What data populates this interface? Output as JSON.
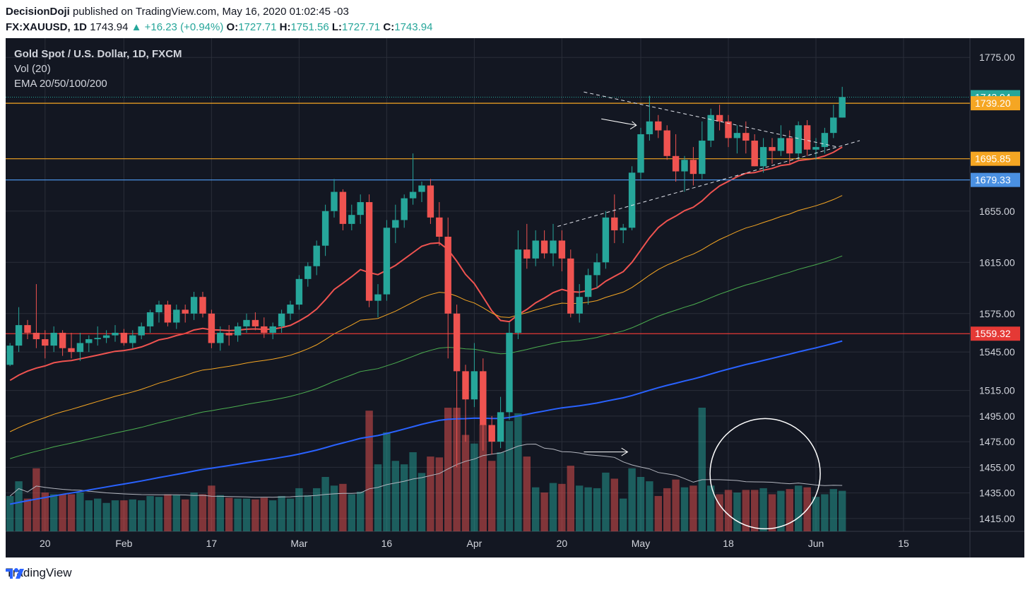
{
  "header": {
    "publisher": "DecisionDoji",
    "published_text": "published on TradingView.com, May 16, 2020 01:02:45 -03",
    "symbol": "FX:XAUUSD, 1D",
    "last": "1743.94",
    "change": "▲ +16.23 (+0.94%)",
    "o_label": "O:",
    "o_value": "1727.71",
    "h_label": "H:",
    "h_value": "1751.56",
    "l_label": "L:",
    "l_value": "1727.71",
    "c_label": "C:",
    "c_value": "1743.94"
  },
  "legend": {
    "title": "Gold Spot / U.S. Dollar, 1D, FXCM",
    "vol": "Vol (20)",
    "ema": "EMA 20/50/100/200"
  },
  "footer": {
    "brand": "TradingView"
  },
  "colors": {
    "background": "#131722",
    "grid": "#2a2e39",
    "up": "#26a69a",
    "down": "#ef5350",
    "ema20": "#ef5350",
    "ema50": "#f5a623",
    "ema100": "#4caf50",
    "ema200": "#2962ff",
    "axis_text": "#d1d4dc"
  },
  "chart_data": {
    "type": "candlestick",
    "title": "Gold Spot / U.S. Dollar, 1D, FXCM",
    "ylim": [
      1405,
      1790
    ],
    "y_ticks": [
      1415,
      1435,
      1455,
      1475,
      1495,
      1515,
      1545,
      1575,
      1615,
      1655,
      1775
    ],
    "x_tick_labels": [
      {
        "label": "20",
        "day": 4
      },
      {
        "label": "Feb",
        "day": 13
      },
      {
        "label": "17",
        "day": 23
      },
      {
        "label": "Mar",
        "day": 33
      },
      {
        "label": "16",
        "day": 43
      },
      {
        "label": "Apr",
        "day": 53
      },
      {
        "label": "20",
        "day": 63
      },
      {
        "label": "May",
        "day": 72
      },
      {
        "label": "18",
        "day": 82
      },
      {
        "label": "Jun",
        "day": 92
      },
      {
        "label": "15",
        "day": 102
      }
    ],
    "horizontal_levels": [
      {
        "value": 1743.94,
        "label": "1743.94",
        "color": "#26a69a",
        "style": "dotted"
      },
      {
        "value": 1739.2,
        "label": "1739.20",
        "color": "#f5a623",
        "style": "solid"
      },
      {
        "value": 1695.85,
        "label": "1695.85",
        "color": "#f5a623",
        "style": "solid"
      },
      {
        "value": 1679.33,
        "label": "1679.33",
        "color": "#4a90e2",
        "style": "solid"
      },
      {
        "value": 1559.32,
        "label": "1559.32",
        "color": "#e53935",
        "style": "solid"
      }
    ],
    "candles": [
      [
        1535,
        1552,
        1534,
        1550
      ],
      [
        1550,
        1580,
        1545,
        1566
      ],
      [
        1566,
        1570,
        1555,
        1560
      ],
      [
        1560,
        1598,
        1548,
        1555
      ],
      [
        1555,
        1562,
        1540,
        1550
      ],
      [
        1550,
        1565,
        1545,
        1560
      ],
      [
        1560,
        1562,
        1542,
        1548
      ],
      [
        1548,
        1560,
        1540,
        1545
      ],
      [
        1545,
        1560,
        1538,
        1552
      ],
      [
        1552,
        1558,
        1545,
        1555
      ],
      [
        1555,
        1565,
        1550,
        1556
      ],
      [
        1556,
        1562,
        1552,
        1558
      ],
      [
        1558,
        1566,
        1553,
        1560
      ],
      [
        1560,
        1563,
        1550,
        1552
      ],
      [
        1552,
        1562,
        1548,
        1558
      ],
      [
        1558,
        1568,
        1555,
        1565
      ],
      [
        1565,
        1578,
        1560,
        1576
      ],
      [
        1576,
        1585,
        1568,
        1582
      ],
      [
        1582,
        1585,
        1565,
        1568
      ],
      [
        1568,
        1582,
        1563,
        1578
      ],
      [
        1578,
        1582,
        1568,
        1575
      ],
      [
        1575,
        1592,
        1570,
        1588
      ],
      [
        1588,
        1592,
        1572,
        1575
      ],
      [
        1575,
        1578,
        1548,
        1552
      ],
      [
        1552,
        1565,
        1546,
        1560
      ],
      [
        1560,
        1566,
        1550,
        1558
      ],
      [
        1558,
        1568,
        1553,
        1565
      ],
      [
        1565,
        1575,
        1560,
        1570
      ],
      [
        1570,
        1576,
        1562,
        1565
      ],
      [
        1565,
        1572,
        1556,
        1560
      ],
      [
        1560,
        1568,
        1555,
        1565
      ],
      [
        1565,
        1578,
        1560,
        1575
      ],
      [
        1575,
        1585,
        1570,
        1582
      ],
      [
        1582,
        1605,
        1578,
        1602
      ],
      [
        1602,
        1615,
        1596,
        1612
      ],
      [
        1612,
        1632,
        1605,
        1628
      ],
      [
        1628,
        1660,
        1620,
        1655
      ],
      [
        1655,
        1680,
        1650,
        1670
      ],
      [
        1670,
        1672,
        1640,
        1645
      ],
      [
        1645,
        1660,
        1640,
        1652
      ],
      [
        1652,
        1668,
        1645,
        1662
      ],
      [
        1662,
        1668,
        1580,
        1585
      ],
      [
        1585,
        1598,
        1572,
        1590
      ],
      [
        1590,
        1648,
        1585,
        1642
      ],
      [
        1642,
        1660,
        1630,
        1648
      ],
      [
        1648,
        1668,
        1642,
        1665
      ],
      [
        1665,
        1700,
        1660,
        1670
      ],
      [
        1670,
        1678,
        1662,
        1675
      ],
      [
        1675,
        1680,
        1645,
        1650
      ],
      [
        1650,
        1662,
        1628,
        1635
      ],
      [
        1635,
        1650,
        1540,
        1575
      ],
      [
        1575,
        1582,
        1455,
        1530
      ],
      [
        1530,
        1535,
        1475,
        1508
      ],
      [
        1508,
        1552,
        1502,
        1530
      ],
      [
        1530,
        1540,
        1468,
        1488
      ],
      [
        1488,
        1495,
        1465,
        1475
      ],
      [
        1475,
        1510,
        1470,
        1498
      ],
      [
        1498,
        1568,
        1492,
        1560
      ],
      [
        1560,
        1640,
        1555,
        1625
      ],
      [
        1625,
        1645,
        1610,
        1618
      ],
      [
        1618,
        1640,
        1612,
        1632
      ],
      [
        1632,
        1640,
        1618,
        1622
      ],
      [
        1622,
        1645,
        1612,
        1632
      ],
      [
        1632,
        1640,
        1608,
        1618
      ],
      [
        1618,
        1625,
        1572,
        1575
      ],
      [
        1575,
        1598,
        1568,
        1588
      ],
      [
        1588,
        1610,
        1582,
        1605
      ],
      [
        1605,
        1622,
        1595,
        1615
      ],
      [
        1615,
        1655,
        1610,
        1650
      ],
      [
        1650,
        1668,
        1630,
        1640
      ],
      [
        1640,
        1645,
        1630,
        1642
      ],
      [
        1642,
        1690,
        1640,
        1685
      ],
      [
        1685,
        1720,
        1680,
        1715
      ],
      [
        1715,
        1745,
        1710,
        1725
      ],
      [
        1725,
        1730,
        1712,
        1718
      ],
      [
        1718,
        1722,
        1695,
        1698
      ],
      [
        1698,
        1715,
        1678,
        1686
      ],
      [
        1686,
        1698,
        1670,
        1695
      ],
      [
        1695,
        1705,
        1675,
        1684
      ],
      [
        1684,
        1725,
        1680,
        1710
      ],
      [
        1710,
        1735,
        1705,
        1730
      ],
      [
        1730,
        1738,
        1718,
        1725
      ],
      [
        1725,
        1730,
        1705,
        1712
      ],
      [
        1712,
        1722,
        1700,
        1716
      ],
      [
        1716,
        1725,
        1700,
        1710
      ],
      [
        1710,
        1715,
        1690,
        1690
      ],
      [
        1690,
        1712,
        1685,
        1705
      ],
      [
        1705,
        1712,
        1692,
        1702
      ],
      [
        1702,
        1722,
        1698,
        1712
      ],
      [
        1712,
        1718,
        1692,
        1700
      ],
      [
        1700,
        1725,
        1695,
        1722
      ],
      [
        1722,
        1726,
        1698,
        1703
      ],
      [
        1703,
        1712,
        1695,
        1705
      ],
      [
        1705,
        1720,
        1700,
        1716
      ],
      [
        1716,
        1738,
        1712,
        1728
      ],
      [
        1728,
        1752,
        1728,
        1744
      ]
    ],
    "volume_max": 1000
  }
}
